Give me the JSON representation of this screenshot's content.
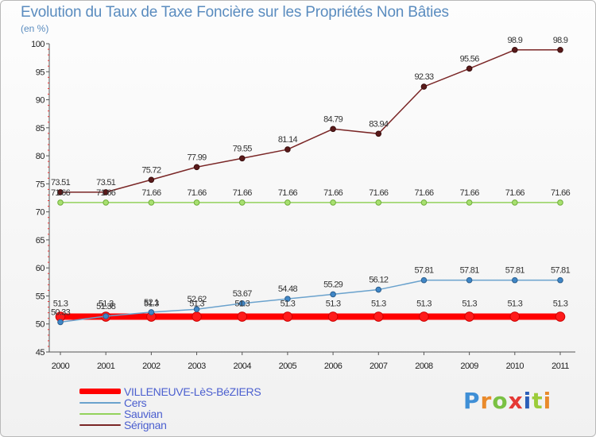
{
  "chart_data": {
    "type": "line",
    "title": "Evolution du Taux de Taxe Foncière sur les Propriétés Non Bâties",
    "subtitle": "(en %)",
    "xlabel": "",
    "ylabel": "",
    "categories": [
      "2000",
      "2001",
      "2002",
      "2003",
      "2004",
      "2005",
      "2006",
      "2007",
      "2008",
      "2009",
      "2010",
      "2011"
    ],
    "ylim": [
      45,
      100
    ],
    "yticks": [
      45,
      50,
      55,
      60,
      65,
      70,
      75,
      80,
      85,
      90,
      95,
      100
    ],
    "yticks_labels": [
      "45",
      "50",
      "55",
      "60",
      "65",
      "70",
      "75",
      "80",
      "85",
      "90",
      "95",
      "100"
    ],
    "grid": false,
    "legend_position": "bottom-left",
    "series": [
      {
        "name": "Sérignan",
        "color": "#7a2626",
        "values": [
          73.51,
          73.51,
          75.72,
          77.99,
          79.55,
          81.14,
          84.79,
          83.94,
          92.33,
          95.56,
          98.9,
          98.9
        ],
        "labels": [
          "73.51",
          "73.51",
          "75.72",
          "77.99",
          "79.55",
          "81.14",
          "84.79",
          "83.94",
          "92.33",
          "95.56",
          "98.9",
          "98.9"
        ]
      },
      {
        "name": "Sauvian",
        "color": "#93d25c",
        "values": [
          71.66,
          71.66,
          71.66,
          71.66,
          71.66,
          71.66,
          71.66,
          71.66,
          71.66,
          71.66,
          71.66,
          71.66
        ],
        "labels": [
          "71.66",
          "71.66",
          "71.66",
          "71.66",
          "71.66",
          "71.66",
          "71.66",
          "71.66",
          "71.66",
          "71.66",
          "71.66",
          "71.66"
        ]
      },
      {
        "name": "Cers",
        "color": "#6aa2cd",
        "values": [
          50.33,
          51.38,
          52.1,
          52.62,
          53.67,
          54.48,
          55.29,
          56.12,
          57.81,
          57.81,
          57.81,
          57.81
        ],
        "labels": [
          "50.33",
          "51.38",
          "52.1",
          "52.62",
          "53.67",
          "54.48",
          "55.29",
          "56.12",
          "57.81",
          "57.81",
          "57.81",
          "57.81"
        ]
      },
      {
        "name": "VILLENEUVE-LèS-BéZIERS",
        "color": "#ff0000",
        "values": [
          51.3,
          51.3,
          51.3,
          51.3,
          51.3,
          51.3,
          51.3,
          51.3,
          51.3,
          51.3,
          51.3,
          51.3
        ],
        "labels": [
          "51.3",
          "51.3",
          "51.3",
          "51.3",
          "51.3",
          "51.3",
          "51.3",
          "51.3",
          "51.3",
          "51.3",
          "51.3",
          "51.3"
        ]
      }
    ],
    "legend": [
      "VILLENEUVE-LèS-BéZIERS",
      "Cers",
      "Sauvian",
      "Sérignan"
    ]
  },
  "legend_colors": [
    "#ff0000",
    "#6aa2cd",
    "#93d25c",
    "#7a2626"
  ],
  "logo": {
    "text": "Proxiti",
    "letters": [
      "P",
      "r",
      "o",
      "x",
      "i",
      "t",
      "i"
    ],
    "colors": [
      "#3f8fd6",
      "#e98a2b",
      "#7ac143",
      "#e53935",
      "#2b5fb8",
      "#9ccc3a",
      "#e98a2b"
    ]
  }
}
